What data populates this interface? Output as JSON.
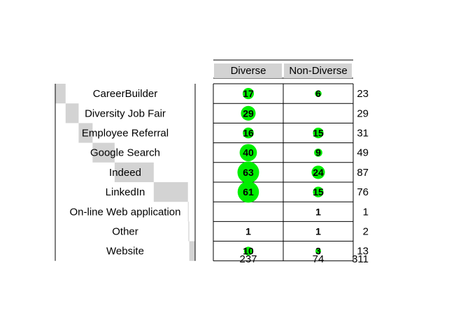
{
  "chart_data": {
    "type": "table",
    "columns": [
      "Diverse",
      "Non-Diverse"
    ],
    "rows": [
      {
        "label": "CareerBuilder",
        "values": [
          17,
          6
        ],
        "total": "23"
      },
      {
        "label": "Diversity Job Fair",
        "values": [
          29,
          null
        ],
        "total": "29"
      },
      {
        "label": "Employee Referral",
        "values": [
          16,
          15
        ],
        "total": "31"
      },
      {
        "label": "Google Search",
        "values": [
          40,
          9
        ],
        "total": "49"
      },
      {
        "label": "Indeed",
        "values": [
          63,
          24
        ],
        "total": "87"
      },
      {
        "label": "LinkedIn",
        "values": [
          61,
          15
        ],
        "total": "76"
      },
      {
        "label": "On-line Web application",
        "values": [
          null,
          1
        ],
        "total": "1"
      },
      {
        "label": "Other",
        "values": [
          1,
          1
        ],
        "total": "2"
      },
      {
        "label": "Website",
        "values": [
          10,
          3
        ],
        "total": "13"
      }
    ],
    "column_totals": [
      "237",
      "74"
    ],
    "grand_total": "311",
    "bubble_color": "#00ee00",
    "header_color": "#d3d3d3",
    "bar_color": "#d3d3d3"
  }
}
